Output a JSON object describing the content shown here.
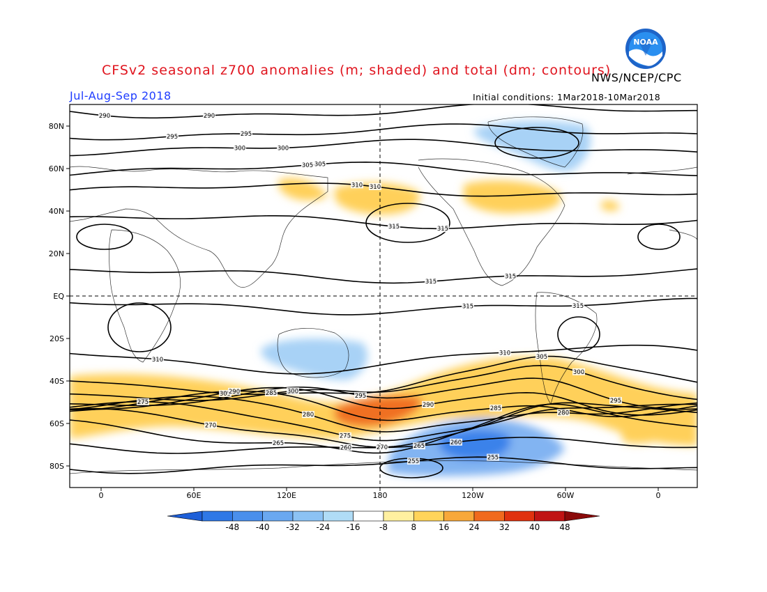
{
  "header": {
    "title": "CFSv2 seasonal z700 anomalies (m; shaded) and total (dm; contours)",
    "agency": "NWS/NCEP/CPC",
    "period": "Jul-Aug-Sep 2018",
    "initial_conditions": "Initial conditions: 1Mar2018-10Mar2018",
    "logo_text": "NOAA"
  },
  "map": {
    "lat_ticks": [
      "80N",
      "60N",
      "40N",
      "20N",
      "EQ",
      "20S",
      "40S",
      "60S",
      "80S"
    ],
    "lon_ticks": [
      "0",
      "60E",
      "120E",
      "180",
      "120W",
      "60W",
      "0"
    ],
    "contour_levels": [
      {
        "label": "290",
        "y": 160
      },
      {
        "label": "295",
        "y": 190
      },
      {
        "label": "300",
        "y": 212
      },
      {
        "label": "305",
        "y": 244
      },
      {
        "label": "310",
        "y": 273
      },
      {
        "label": "315",
        "y": 318
      },
      {
        "label": "315",
        "y": 395
      },
      {
        "label": "315",
        "y": 440
      },
      {
        "label": "310",
        "y": 515
      },
      {
        "label": "305",
        "y": 545
      },
      {
        "label": "300",
        "y": 556
      },
      {
        "label": "295",
        "y": 566
      },
      {
        "label": "290",
        "y": 575
      },
      {
        "label": "285",
        "y": 583
      },
      {
        "label": "280",
        "y": 591
      },
      {
        "label": "275",
        "y": 598
      },
      {
        "label": "270",
        "y": 606
      },
      {
        "label": "265",
        "y": 618
      },
      {
        "label": "260",
        "y": 640
      },
      {
        "label": "255",
        "y": 668
      }
    ],
    "anomaly_colors": {
      "neg48": "#1e6ee6",
      "neg40": "#3a82ea",
      "neg32": "#5a98ee",
      "neg24": "#82b4f2",
      "neg16": "#a8d2f6",
      "neg8": "#c8ecf8",
      "pos8": "#fff0a8",
      "pos16": "#ffd05a",
      "pos24": "#f5a83a",
      "pos32": "#f07020",
      "pos40": "#e63c0f",
      "pos48": "#c81e0f"
    }
  },
  "colorbar": {
    "labels": [
      "-48",
      "-40",
      "-32",
      "-24",
      "-16",
      "-8",
      "8",
      "16",
      "24",
      "32",
      "40",
      "48"
    ],
    "colors": [
      "#1e5fd8",
      "#2f78e6",
      "#4a8fec",
      "#6aa8f0",
      "#8cc2f4",
      "#b0dcf6",
      "#ffffff",
      "#fff0a0",
      "#ffd45a",
      "#f8a83a",
      "#f06a1e",
      "#e0320f",
      "#c01414",
      "#8a0a0a"
    ]
  }
}
